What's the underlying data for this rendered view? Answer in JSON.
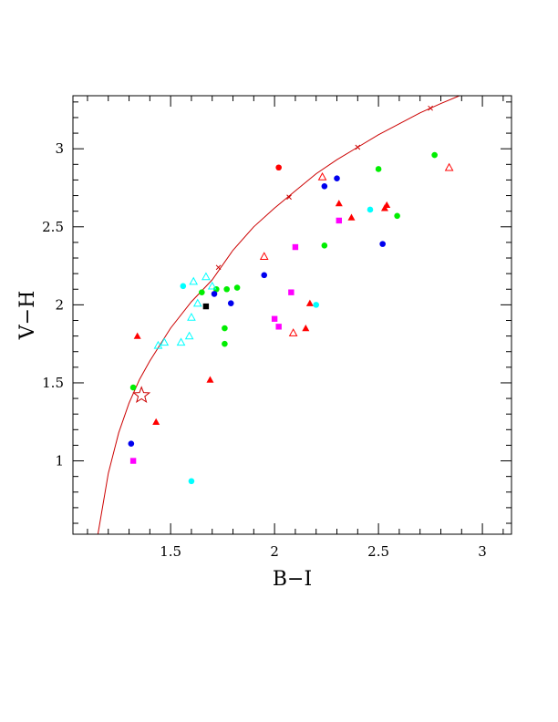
{
  "chart_data": {
    "type": "scatter",
    "xlabel": "B−I",
    "ylabel": "V−H",
    "xlim": [
      1.03,
      3.14
    ],
    "ylim": [
      0.53,
      3.34
    ],
    "xticks": [
      {
        "value": 1.5,
        "label": "1.5"
      },
      {
        "value": 2.0,
        "label": "2"
      },
      {
        "value": 2.5,
        "label": "2.5"
      },
      {
        "value": 3.0,
        "label": "3"
      }
    ],
    "yticks": [
      {
        "value": 1.0,
        "label": "1"
      },
      {
        "value": 1.5,
        "label": "1.5"
      },
      {
        "value": 2.0,
        "label": "2"
      },
      {
        "value": 2.5,
        "label": "2.5"
      },
      {
        "value": 3.0,
        "label": "3"
      }
    ],
    "grid": false,
    "colors": {
      "red": "#ff0000",
      "green": "#00ee00",
      "blue": "#0000ee",
      "cyan": "#00ffff",
      "magenta": "#ff00ff",
      "black": "#000000",
      "curve": "#cc0000"
    },
    "curve": {
      "points": [
        [
          1.15,
          0.53
        ],
        [
          1.2,
          0.92
        ],
        [
          1.25,
          1.18
        ],
        [
          1.3,
          1.37
        ],
        [
          1.35,
          1.52
        ],
        [
          1.4,
          1.64
        ],
        [
          1.5,
          1.85
        ],
        [
          1.6,
          2.02
        ],
        [
          1.7,
          2.16
        ],
        [
          1.8,
          2.35
        ],
        [
          1.9,
          2.5
        ],
        [
          2.0,
          2.62
        ],
        [
          2.1,
          2.73
        ],
        [
          2.2,
          2.84
        ],
        [
          2.3,
          2.93
        ],
        [
          2.4,
          3.01
        ],
        [
          2.5,
          3.09
        ],
        [
          2.6,
          3.16
        ],
        [
          2.7,
          3.23
        ],
        [
          2.8,
          3.29
        ],
        [
          2.89,
          3.34
        ]
      ],
      "markers": [
        [
          1.73,
          2.24
        ],
        [
          2.07,
          2.69
        ],
        [
          2.4,
          3.01
        ],
        [
          2.75,
          3.26
        ]
      ],
      "star": [
        1.36,
        1.42
      ]
    },
    "series": [
      {
        "marker": "filled-triangle",
        "color": "red",
        "x": [
          1.34,
          1.43,
          1.69,
          2.15,
          2.17,
          2.31,
          2.37,
          2.53,
          2.54
        ],
        "y": [
          1.8,
          1.25,
          1.52,
          1.85,
          2.01,
          2.65,
          2.56,
          2.62,
          2.64
        ]
      },
      {
        "marker": "open-triangle",
        "color": "red",
        "x": [
          1.95,
          2.09,
          2.23,
          2.84
        ],
        "y": [
          2.31,
          1.82,
          2.82,
          2.88
        ]
      },
      {
        "marker": "filled-circle",
        "color": "red",
        "x": [
          2.02
        ],
        "y": [
          2.88
        ]
      },
      {
        "marker": "filled-circle",
        "color": "green",
        "x": [
          1.32,
          1.65,
          1.72,
          1.76,
          1.76,
          1.77,
          1.82,
          2.24,
          2.5,
          2.59,
          2.77
        ],
        "y": [
          1.47,
          2.08,
          2.1,
          1.85,
          1.75,
          2.1,
          2.11,
          2.38,
          2.87,
          2.57,
          2.96
        ]
      },
      {
        "marker": "filled-circle",
        "color": "blue",
        "x": [
          1.31,
          1.71,
          1.79,
          1.95,
          2.24,
          2.3,
          2.52
        ],
        "y": [
          1.11,
          2.07,
          2.01,
          2.19,
          2.76,
          2.81,
          2.39
        ]
      },
      {
        "marker": "filled-circle",
        "color": "cyan",
        "x": [
          1.56,
          1.6,
          2.2,
          2.46
        ],
        "y": [
          2.12,
          0.87,
          2.0,
          2.61
        ]
      },
      {
        "marker": "open-triangle",
        "color": "cyan",
        "x": [
          1.44,
          1.47,
          1.55,
          1.59,
          1.6,
          1.61,
          1.63,
          1.67,
          1.7
        ],
        "y": [
          1.74,
          1.76,
          1.76,
          1.8,
          1.92,
          2.15,
          2.01,
          2.18,
          2.12
        ]
      },
      {
        "marker": "filled-square",
        "color": "magenta",
        "x": [
          1.32,
          2.0,
          2.02,
          2.08,
          2.1,
          2.31
        ],
        "y": [
          1.0,
          1.91,
          1.86,
          2.08,
          2.37,
          2.54
        ]
      },
      {
        "marker": "filled-square",
        "color": "black",
        "x": [
          1.67
        ],
        "y": [
          1.99
        ]
      }
    ]
  }
}
